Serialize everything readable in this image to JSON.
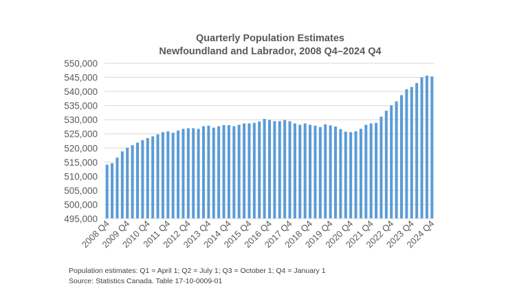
{
  "chart_data": {
    "type": "bar",
    "title": "Quarterly Population Estimates",
    "subtitle": "Newfoundland and Labrador, 2008 Q4–2024 Q4",
    "xlabel": "",
    "ylabel": "",
    "ylim": [
      495000,
      550000
    ],
    "y_ticks": [
      "495,000",
      "500,000",
      "505,000",
      "510,000",
      "515,000",
      "520,000",
      "525,000",
      "530,000",
      "535,000",
      "540,000",
      "545,000",
      "550,000"
    ],
    "x_tick_labels": [
      "2008 Q4",
      "2009 Q4",
      "2010 Q4",
      "2011 Q4",
      "2012 Q4",
      "2013 Q4",
      "2014 Q4",
      "2015 Q4",
      "2016 Q4",
      "2017 Q4",
      "2018 Q4",
      "2019 Q4",
      "2020 Q4",
      "2021 Q4",
      "2022 Q4",
      "2023 Q4",
      "2024 Q4"
    ],
    "grid": true,
    "bar_color": "#5B9BD5",
    "values": [
      514100,
      514600,
      516600,
      518800,
      520100,
      521000,
      521900,
      522800,
      523500,
      524100,
      524800,
      525600,
      525900,
      525400,
      526200,
      526800,
      527000,
      527000,
      526800,
      527700,
      527900,
      527200,
      527700,
      528100,
      528100,
      527700,
      528200,
      528700,
      528700,
      528900,
      529400,
      530300,
      529900,
      529500,
      529500,
      529900,
      529500,
      528700,
      528200,
      528700,
      528200,
      527900,
      527400,
      528400,
      528000,
      527600,
      526700,
      525800,
      525600,
      525900,
      526800,
      528200,
      528700,
      528900,
      531100,
      533200,
      535100,
      536500,
      538700,
      540800,
      541600,
      543000,
      545000,
      545600,
      545300
    ]
  },
  "notes": {
    "line1": "Population estimates: Q1 = April 1; Q2 = July 1; Q3 = October 1; Q4 = January 1",
    "line2": "Source: Statistics Canada. Table 17-10-0009-01"
  }
}
